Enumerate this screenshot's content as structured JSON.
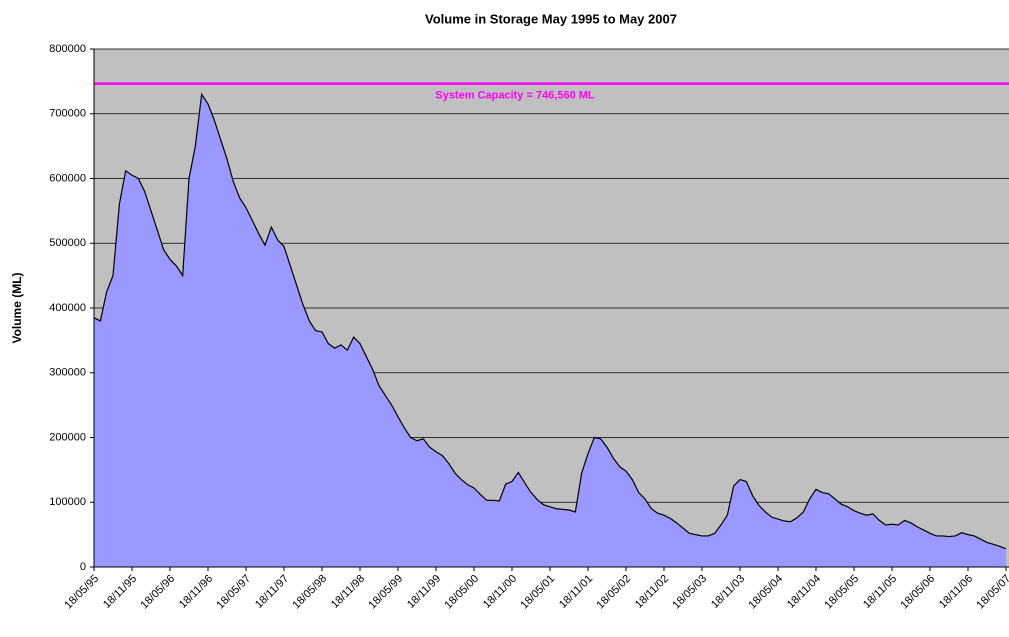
{
  "chart_data": {
    "type": "area",
    "title": "Volume in Storage May 1995 to May 2007",
    "y_label": "Volume (ML)",
    "categories": [
      "18/05/95",
      null,
      null,
      null,
      null,
      null,
      "18/11/95",
      null,
      null,
      null,
      null,
      null,
      "18/05/96",
      null,
      null,
      null,
      null,
      null,
      "18/11/96",
      null,
      null,
      null,
      null,
      null,
      "18/05/97",
      null,
      null,
      null,
      null,
      null,
      "18/11/97",
      null,
      null,
      null,
      null,
      null,
      "18/05/98",
      null,
      null,
      null,
      null,
      null,
      "18/11/98",
      null,
      null,
      null,
      null,
      null,
      "18/05/99",
      null,
      null,
      null,
      null,
      null,
      "18/11/99",
      null,
      null,
      null,
      null,
      null,
      "18/05/00",
      null,
      null,
      null,
      null,
      null,
      "18/11/00",
      null,
      null,
      null,
      null,
      null,
      "18/05/01",
      null,
      null,
      null,
      null,
      null,
      "18/11/01",
      null,
      null,
      null,
      null,
      null,
      "18/05/02",
      null,
      null,
      null,
      null,
      null,
      "18/11/02",
      null,
      null,
      null,
      null,
      null,
      "18/05/03",
      null,
      null,
      null,
      null,
      null,
      "18/11/03",
      null,
      null,
      null,
      null,
      null,
      "18/05/04",
      null,
      null,
      null,
      null,
      null,
      "18/11/04",
      null,
      null,
      null,
      null,
      null,
      "18/05/05",
      null,
      null,
      null,
      null,
      null,
      "18/11/05",
      null,
      null,
      null,
      null,
      null,
      "18/05/06",
      null,
      null,
      null,
      null,
      null,
      "18/11/06",
      null,
      null,
      null,
      null,
      null,
      "18/05/07"
    ],
    "series": [
      {
        "name": "Volume",
        "color": "#9999ff",
        "values": [
          385000,
          380000,
          425000,
          450000,
          560000,
          612000,
          605000,
          600000,
          580000,
          550000,
          520000,
          490000,
          475000,
          465000,
          450000,
          600000,
          650000,
          730000,
          715000,
          690000,
          660000,
          630000,
          595000,
          570000,
          555000,
          535000,
          515000,
          497000,
          525000,
          505000,
          495000,
          465000,
          435000,
          405000,
          380000,
          365000,
          363000,
          345000,
          338000,
          343000,
          335000,
          355000,
          345000,
          325000,
          305000,
          280000,
          265000,
          250000,
          232000,
          215000,
          200000,
          195000,
          198000,
          185000,
          178000,
          172000,
          160000,
          145000,
          135000,
          127000,
          122000,
          112000,
          103000,
          103000,
          102000,
          128000,
          132000,
          146000,
          130000,
          115000,
          104000,
          96000,
          93000,
          90000,
          89000,
          88000,
          85000,
          145000,
          175000,
          200000,
          198000,
          185000,
          168000,
          155000,
          148000,
          135000,
          115000,
          105000,
          90000,
          83000,
          80000,
          75000,
          68000,
          60000,
          52000,
          50000,
          48000,
          48000,
          52000,
          65000,
          80000,
          125000,
          135000,
          132000,
          110000,
          95000,
          85000,
          77000,
          74000,
          71000,
          70000,
          76000,
          85000,
          105000,
          120000,
          115000,
          113000,
          105000,
          97000,
          93000,
          87000,
          83000,
          80000,
          82000,
          72000,
          65000,
          66000,
          65000,
          72000,
          68000,
          62000,
          57000,
          52000,
          48000,
          48000,
          47000,
          48000,
          53000,
          50000,
          48000,
          43000,
          38000,
          35000,
          32000,
          28000
        ]
      }
    ],
    "ylim": [
      0,
      800000
    ],
    "yticks": [
      0,
      100000,
      200000,
      300000,
      400000,
      500000,
      600000,
      700000,
      800000
    ],
    "grid": true,
    "background": "#c0c0c0",
    "reference_line": {
      "value": 746560,
      "label": "System Capacity = 746,560 ML",
      "color": "#ff00ff"
    }
  }
}
